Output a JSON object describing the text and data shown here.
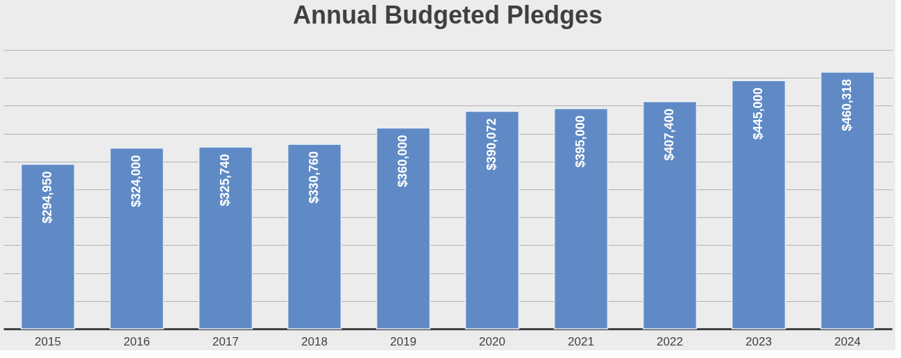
{
  "chart_data": {
    "type": "bar",
    "title": "Annual Budgeted Pledges",
    "categories": [
      "2015",
      "2016",
      "2017",
      "2018",
      "2019",
      "2020",
      "2021",
      "2022",
      "2023",
      "2024"
    ],
    "values": [
      294950,
      324000,
      325740,
      330760,
      360000,
      390072,
      395000,
      407400,
      445000,
      460318
    ],
    "value_labels": [
      "$294,950",
      "$324,000",
      "$325,740",
      "$330,760",
      "$360,000",
      "$390,072",
      "$395,000",
      "$407,400",
      "$445,000",
      "$460,318"
    ],
    "color": "#5f8ac5",
    "ylim": [
      0,
      500000
    ],
    "yticks": [
      {
        "value": 0,
        "label": null
      },
      {
        "value": 50000,
        "label": null
      },
      {
        "value": 100000,
        "label": null
      },
      {
        "value": 150000,
        "label": null
      },
      {
        "value": 200000,
        "label": null
      },
      {
        "value": 250000,
        "label": null
      },
      {
        "value": 300000,
        "label": null
      },
      {
        "value": 350000,
        "label": null
      },
      {
        "value": 400000,
        "label": null
      },
      {
        "value": 450000,
        "label": null
      },
      {
        "value": 500000,
        "label": null
      }
    ],
    "grid": "y",
    "tick_labels": "x"
  }
}
